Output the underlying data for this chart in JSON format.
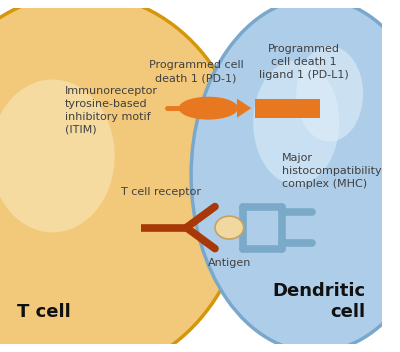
{
  "background_color": "#ffffff",
  "t_cell_color": "#f2c97a",
  "t_cell_border_color": "#d4960a",
  "t_cell_inner_color": "#f7e4b0",
  "dendritic_cell_color": "#aecde8",
  "dendritic_cell_border_color": "#7aa8cc",
  "dendritic_cell_inner_color": "#d0e6f5",
  "pd1_color": "#e87820",
  "pdl1_color": "#e87820",
  "tcr_color": "#a83808",
  "antigen_color": "#f0d8a0",
  "mhc_color": "#7aaac8",
  "label_color": "#404040",
  "t_cell_label": "T cell",
  "dendritic_label": "Dendritic\ncell",
  "itim_label": "Immunoreceptor\ntyrosine-based\ninhibitory motif\n(ITIM)",
  "pd1_label": "Programmed cell\ndeath 1 (PD-1)",
  "pdl1_label": "Programmed\ncell death 1\nligand 1 (PD-L1)",
  "tcr_label": "T cell receptor",
  "antigen_label": "Antigen",
  "mhc_label": "Major\nhistocompatibility\ncomplex (MHC)"
}
